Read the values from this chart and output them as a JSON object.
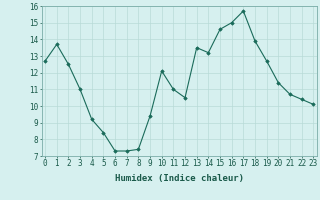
{
  "x": [
    0,
    1,
    2,
    3,
    4,
    5,
    6,
    7,
    8,
    9,
    10,
    11,
    12,
    13,
    14,
    15,
    16,
    17,
    18,
    19,
    20,
    21,
    22,
    23
  ],
  "y": [
    12.7,
    13.7,
    12.5,
    11.0,
    9.2,
    8.4,
    7.3,
    7.3,
    7.4,
    9.4,
    12.1,
    11.0,
    10.5,
    13.5,
    13.2,
    14.6,
    15.0,
    15.7,
    13.9,
    12.7,
    11.4,
    10.7,
    10.4,
    10.1
  ],
  "line_color": "#1a6b5a",
  "marker": "D",
  "marker_size": 1.8,
  "bg_color": "#d6f0ef",
  "grid_color": "#b8dbd8",
  "xlabel": "Humidex (Indice chaleur)",
  "ylim": [
    7,
    16
  ],
  "yticks": [
    7,
    8,
    9,
    10,
    11,
    12,
    13,
    14,
    15,
    16
  ],
  "xticks": [
    0,
    1,
    2,
    3,
    4,
    5,
    6,
    7,
    8,
    9,
    10,
    11,
    12,
    13,
    14,
    15,
    16,
    17,
    18,
    19,
    20,
    21,
    22,
    23
  ],
  "xlim": [
    -0.3,
    23.3
  ],
  "tick_fontsize": 5.5,
  "xlabel_fontsize": 6.5
}
